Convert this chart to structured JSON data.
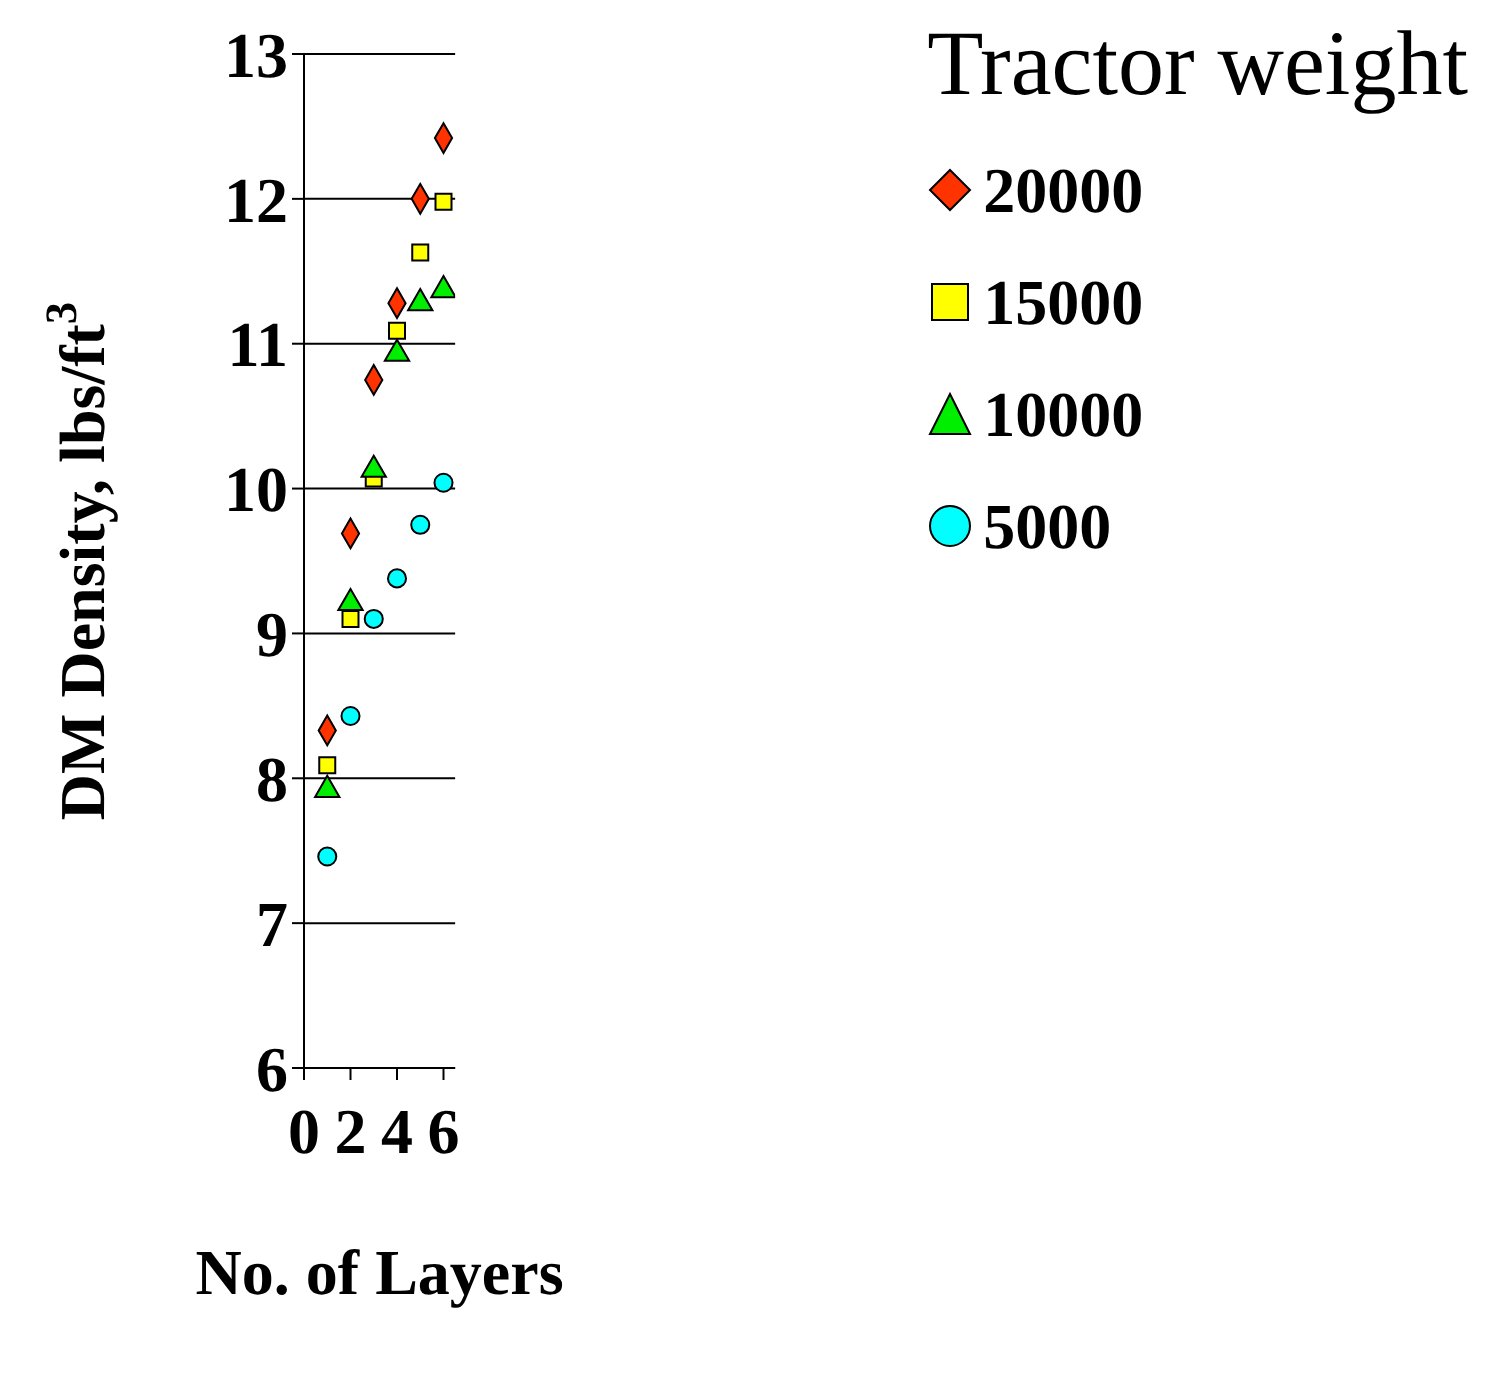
{
  "chart_data": {
    "type": "scatter",
    "xlabel": "No. of Layers",
    "ylabel": "DM Density, lbs/ft$^{3}$",
    "legend_title": "Tractor weight",
    "legend": "right",
    "grid": "y",
    "xlim": [
      0,
      6.5
    ],
    "xticks": [
      0,
      2,
      4,
      6
    ],
    "ylim": [
      6,
      13
    ],
    "yticks": [
      6,
      7,
      8,
      9,
      10,
      11,
      12,
      13
    ],
    "x": [
      1,
      2,
      3,
      4,
      5,
      6
    ],
    "series": [
      {
        "name": "20000",
        "color": "#ff3300",
        "marker": "diamond",
        "values": [
          8.33,
          9.69,
          10.75,
          11.28,
          12.0,
          12.42
        ]
      },
      {
        "name": "15000",
        "color": "#ffff00",
        "marker": "square",
        "values": [
          8.09,
          9.1,
          10.07,
          11.09,
          11.63,
          11.98
        ]
      },
      {
        "name": "10000",
        "color": "#00ee00",
        "marker": "triangle",
        "values": [
          7.92,
          9.21,
          10.13,
          10.93,
          11.28,
          11.37
        ]
      },
      {
        "name": "5000",
        "color": "#00ffff",
        "marker": "circle",
        "values": [
          7.46,
          8.43,
          9.1,
          9.38,
          9.75,
          10.04
        ]
      }
    ]
  }
}
